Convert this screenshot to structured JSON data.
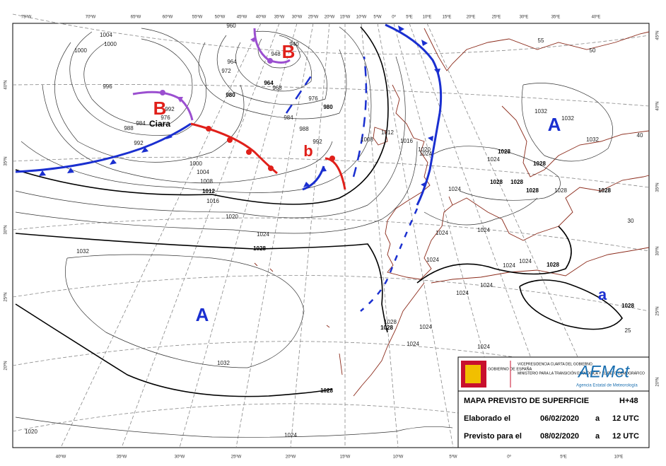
{
  "top_lon_labels": [
    "75ºW",
    "70ºW",
    "65ºW",
    "60ºW",
    "55ºW",
    "50ºW",
    "45ºW",
    "40ºW",
    "35ºW",
    "30ºW",
    "25ºW",
    "20ºW",
    "15ºW",
    "10ºW",
    "5ºW",
    "0º",
    "5ºE",
    "10ºE",
    "15ºE",
    "20ºE",
    "25ºE",
    "30ºE",
    "35ºE",
    "40ºE"
  ],
  "bottom_lon_labels": [
    "40ºW",
    "35ºW",
    "30ºW",
    "25ºW",
    "20ºW",
    "15ºW",
    "10ºW",
    "5ºW",
    "0º",
    "5ºE",
    "10ºE"
  ],
  "left_lat_labels": [
    "40ºN",
    "35ºN",
    "30ºN",
    "25ºN",
    "20ºN"
  ],
  "right_lat_labels": [
    "45ºN",
    "40ºN",
    "35ºN",
    "30ºN",
    "25ºN",
    "20ºN"
  ],
  "pressure_centers": [
    "A",
    "A",
    "a",
    "B",
    "B",
    "b"
  ],
  "storm_name": "Ciara",
  "isobar_labels": [
    "1004",
    "1000",
    "1000",
    "996",
    "992",
    "976",
    "984",
    "988",
    "992",
    "964",
    "972",
    "980",
    "964",
    "968",
    "976",
    "980",
    "984",
    "988",
    "992",
    "1000",
    "1004",
    "1008",
    "1012",
    "1016",
    "1020",
    "1024",
    "1028",
    "1032",
    "1032",
    "1028",
    "1024",
    "1020",
    "1028",
    "1028",
    "1024",
    "1024",
    "1024",
    "1024",
    "1024",
    "1024",
    "1024",
    "1028",
    "1024",
    "1024",
    "1024",
    "1024",
    "1028",
    "1028",
    "1028",
    "1028",
    "1028",
    "1028",
    "1024",
    "1028",
    "1024",
    "1032",
    "1032",
    "1032",
    "1028",
    "1008",
    "1012",
    "1016",
    "1020",
    "940",
    "948",
    "960",
    "55",
    "50",
    "40",
    "30",
    "25"
  ],
  "info": {
    "gobierno": "GOBIERNO DE ESPAÑA",
    "vicepresidencia": "VICEPRESIDENCIA CUARTA DEL GOBIERNO",
    "ministerio": "MINISTERIO PARA LA TRANSICIÓN ECOLÓGICA Y EL RETO DEMOGRÁFICO",
    "aemet": "AEMet",
    "agencia": "Agencia Estatal de Meteorología",
    "title": "MAPA PREVISTO DE SUPERFICIE",
    "hour": "H+48",
    "rows": [
      {
        "label": "Elaborado el",
        "date": "06/02/2020",
        "at": "a",
        "time": "12 UTC"
      },
      {
        "label": "Previsto para el",
        "date": "08/02/2020",
        "at": "a",
        "time": "12 UTC"
      }
    ]
  }
}
